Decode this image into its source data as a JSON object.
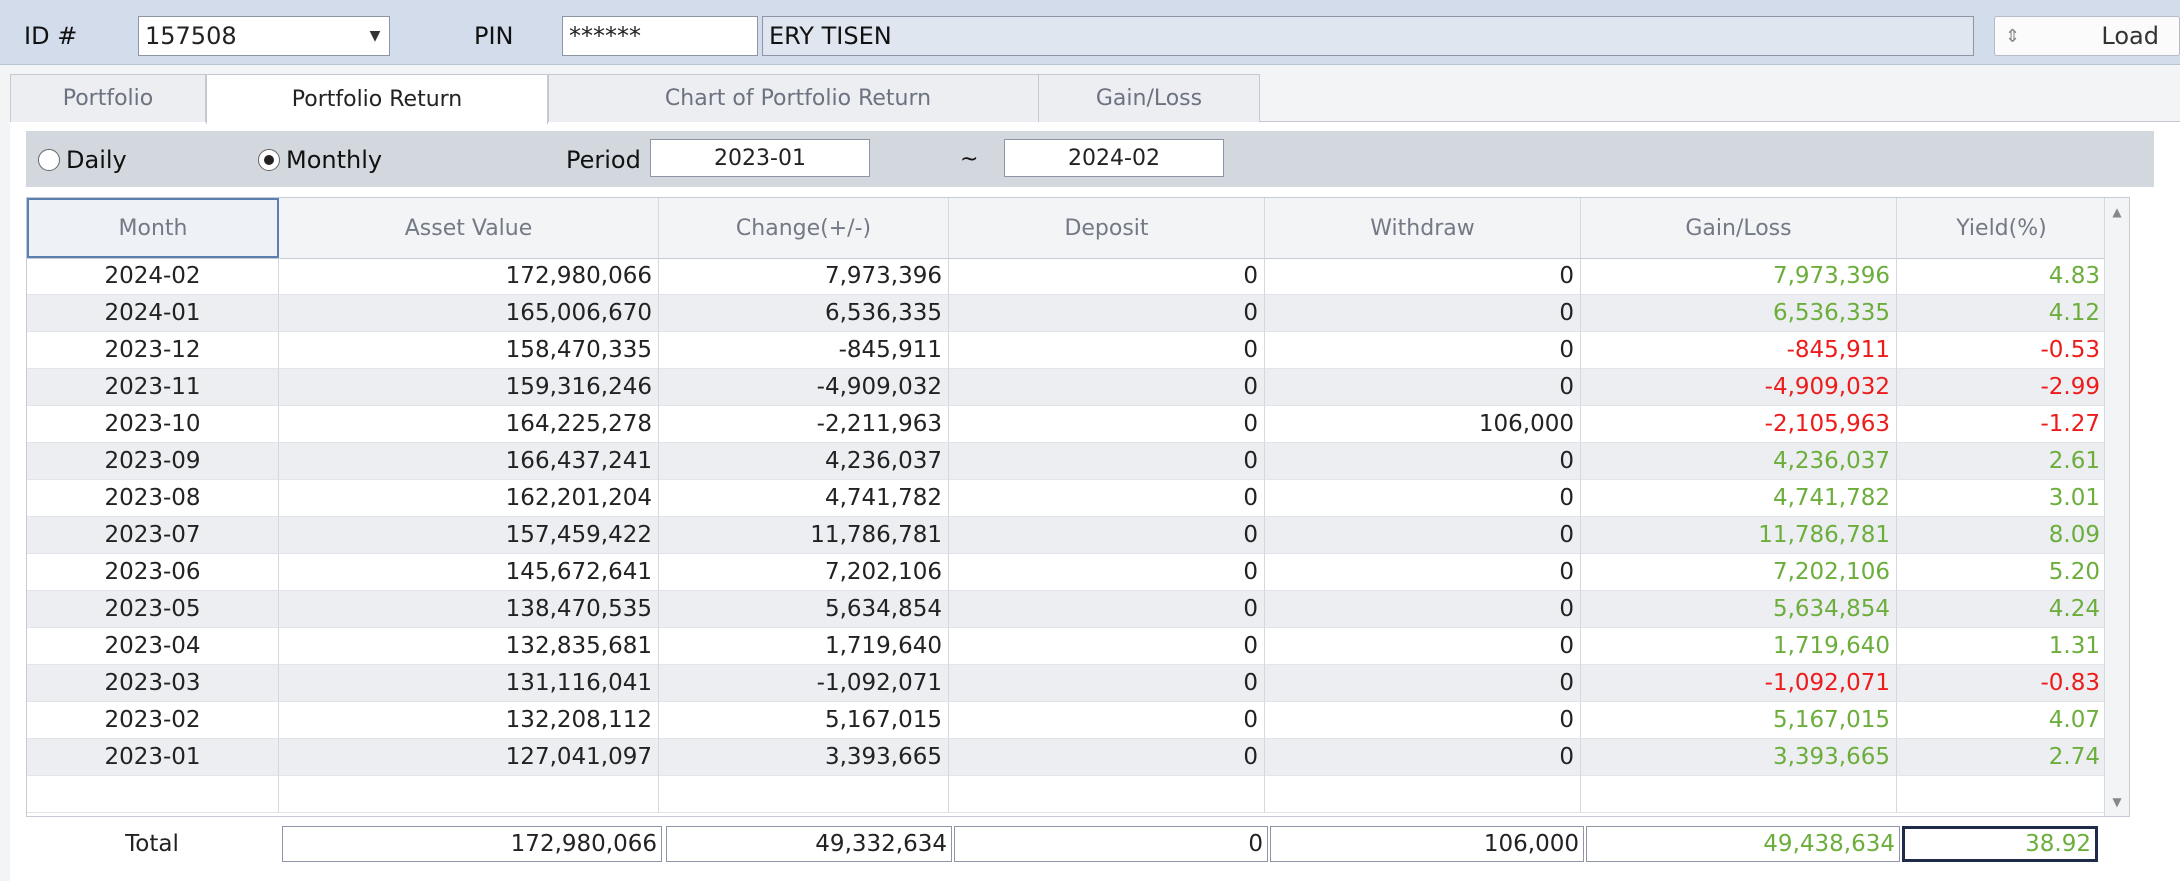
{
  "header": {
    "id_label": "ID #",
    "id_value": "157508",
    "pin_label": "PIN",
    "pin_value": "******",
    "name_value": "ERY TISEN",
    "load_label": "Load",
    "load_icon": "sort-arrows-icon"
  },
  "tabs": [
    {
      "label": "Portfolio"
    },
    {
      "label": "Portfolio Return"
    },
    {
      "label": "Chart of Portfolio Return"
    },
    {
      "label": "Gain/Loss"
    }
  ],
  "options": {
    "daily_label": "Daily",
    "monthly_label": "Monthly",
    "selected": "Monthly",
    "period_label": "Period",
    "period_from": "2023-01",
    "period_sep": "~",
    "period_to": "2024-02"
  },
  "table": {
    "columns": [
      "Month",
      "Asset Value",
      "Change(+/-)",
      "Deposit",
      "Withdraw",
      "Gain/Loss",
      "Yield(%)"
    ],
    "rows": [
      [
        "2024-02",
        "172,980,066",
        "7,973,396",
        "0",
        "0",
        "7,973,396",
        "4.83"
      ],
      [
        "2024-01",
        "165,006,670",
        "6,536,335",
        "0",
        "0",
        "6,536,335",
        "4.12"
      ],
      [
        "2023-12",
        "158,470,335",
        "-845,911",
        "0",
        "0",
        "-845,911",
        "-0.53"
      ],
      [
        "2023-11",
        "159,316,246",
        "-4,909,032",
        "0",
        "0",
        "-4,909,032",
        "-2.99"
      ],
      [
        "2023-10",
        "164,225,278",
        "-2,211,963",
        "0",
        "106,000",
        "-2,105,963",
        "-1.27"
      ],
      [
        "2023-09",
        "166,437,241",
        "4,236,037",
        "0",
        "0",
        "4,236,037",
        "2.61"
      ],
      [
        "2023-08",
        "162,201,204",
        "4,741,782",
        "0",
        "0",
        "4,741,782",
        "3.01"
      ],
      [
        "2023-07",
        "157,459,422",
        "11,786,781",
        "0",
        "0",
        "11,786,781",
        "8.09"
      ],
      [
        "2023-06",
        "145,672,641",
        "7,202,106",
        "0",
        "0",
        "7,202,106",
        "5.20"
      ],
      [
        "2023-05",
        "138,470,535",
        "5,634,854",
        "0",
        "0",
        "5,634,854",
        "4.24"
      ],
      [
        "2023-04",
        "132,835,681",
        "1,719,640",
        "0",
        "0",
        "1,719,640",
        "1.31"
      ],
      [
        "2023-03",
        "131,116,041",
        "-1,092,071",
        "0",
        "0",
        "-1,092,071",
        "-0.83"
      ],
      [
        "2023-02",
        "132,208,112",
        "5,167,015",
        "0",
        "0",
        "5,167,015",
        "4.07"
      ],
      [
        "2023-01",
        "127,041,097",
        "3,393,665",
        "0",
        "0",
        "3,393,665",
        "2.74"
      ]
    ]
  },
  "totals": {
    "label": "Total",
    "asset_value": "172,980,066",
    "change": "49,332,634",
    "deposit": "0",
    "withdraw": "106,000",
    "gain_loss": "49,438,634",
    "yield": "38.92"
  },
  "colors": {
    "positive": "#6cae3c",
    "negative": "#ee1b1b"
  }
}
